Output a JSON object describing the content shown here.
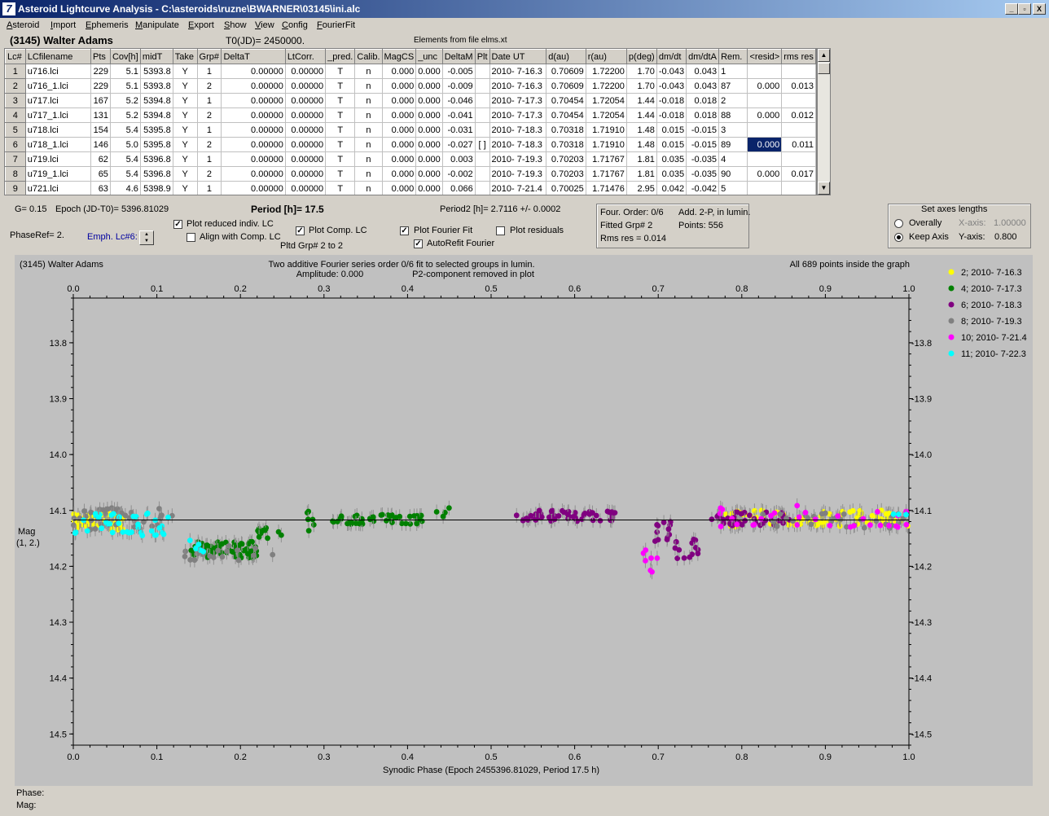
{
  "window": {
    "title": "Asteroid Lightcurve Analysis - C:\\asteroids\\ruzne\\BWARNER\\03145\\ini.alc",
    "icon": "7",
    "min": "_",
    "max": "▫",
    "close": "X"
  },
  "menu": [
    "Asteroid",
    "Import",
    "Ephemeris",
    "Manipulate",
    "Export",
    "Show",
    "View",
    "Config",
    "FourierFit"
  ],
  "header": {
    "object": "(3145) Walter Adams",
    "t0": "T0(JD)= 2450000.",
    "elements": "Elements from file elms.xt"
  },
  "table": {
    "columns": [
      "Lc#",
      "LCfilename",
      "Pts",
      "Cov[h]",
      "midT",
      "Take",
      "Grp#",
      "DeltaT",
      "LtCorr.",
      "_pred.",
      "Calib.",
      "MagCS",
      "_unc",
      "DeltaM",
      "Plt",
      "Date UT",
      "d(au)",
      "r(au)",
      "p(deg)",
      "dm/dt",
      "dm/dtA",
      "Rem.",
      "<resid>",
      "rms res"
    ],
    "rows": [
      [
        "1",
        "u716.lci",
        "229",
        "5.1",
        "5393.8",
        "Y",
        "1",
        "0.00000",
        "0.00000",
        "T",
        "n",
        "0.000",
        "0.000",
        "-0.005",
        "",
        "2010- 7-16.3",
        "0.70609",
        "1.72200",
        "1.70",
        "-0.043",
        "0.043",
        "1",
        "",
        ""
      ],
      [
        "2",
        "u716_1.lci",
        "229",
        "5.1",
        "5393.8",
        "Y",
        "2",
        "0.00000",
        "0.00000",
        "T",
        "n",
        "0.000",
        "0.000",
        "-0.009",
        "",
        "2010- 7-16.3",
        "0.70609",
        "1.72200",
        "1.70",
        "-0.043",
        "0.043",
        "87",
        "0.000",
        "0.013"
      ],
      [
        "3",
        "u717.lci",
        "167",
        "5.2",
        "5394.8",
        "Y",
        "1",
        "0.00000",
        "0.00000",
        "T",
        "n",
        "0.000",
        "0.000",
        "-0.046",
        "",
        "2010- 7-17.3",
        "0.70454",
        "1.72054",
        "1.44",
        "-0.018",
        "0.018",
        "2",
        "",
        ""
      ],
      [
        "4",
        "u717_1.lci",
        "131",
        "5.2",
        "5394.8",
        "Y",
        "2",
        "0.00000",
        "0.00000",
        "T",
        "n",
        "0.000",
        "0.000",
        "-0.041",
        "",
        "2010- 7-17.3",
        "0.70454",
        "1.72054",
        "1.44",
        "-0.018",
        "0.018",
        "88",
        "0.000",
        "0.012"
      ],
      [
        "5",
        "u718.lci",
        "154",
        "5.4",
        "5395.8",
        "Y",
        "1",
        "0.00000",
        "0.00000",
        "T",
        "n",
        "0.000",
        "0.000",
        "-0.031",
        "",
        "2010- 7-18.3",
        "0.70318",
        "1.71910",
        "1.48",
        "0.015",
        "-0.015",
        "3",
        "",
        ""
      ],
      [
        "6",
        "u718_1.lci",
        "146",
        "5.0",
        "5395.8",
        "Y",
        "2",
        "0.00000",
        "0.00000",
        "T",
        "n",
        "0.000",
        "0.000",
        "-0.027",
        "[ ]",
        "2010- 7-18.3",
        "0.70318",
        "1.71910",
        "1.48",
        "0.015",
        "-0.015",
        "89",
        "0.000",
        "0.011"
      ],
      [
        "7",
        "u719.lci",
        "62",
        "5.4",
        "5396.8",
        "Y",
        "1",
        "0.00000",
        "0.00000",
        "T",
        "n",
        "0.000",
        "0.000",
        "0.003",
        "",
        "2010- 7-19.3",
        "0.70203",
        "1.71767",
        "1.81",
        "0.035",
        "-0.035",
        "4",
        "",
        ""
      ],
      [
        "8",
        "u719_1.lci",
        "65",
        "5.4",
        "5396.8",
        "Y",
        "2",
        "0.00000",
        "0.00000",
        "T",
        "n",
        "0.000",
        "0.000",
        "-0.002",
        "",
        "2010- 7-19.3",
        "0.70203",
        "1.71767",
        "1.81",
        "0.035",
        "-0.035",
        "90",
        "0.000",
        "0.017"
      ],
      [
        "9",
        "u721.lci",
        "63",
        "4.6",
        "5398.9",
        "Y",
        "1",
        "0.00000",
        "0.00000",
        "T",
        "n",
        "0.000",
        "0.000",
        "0.066",
        "",
        "2010- 7-21.4",
        "0.70025",
        "1.71476",
        "2.95",
        "0.042",
        "-0.042",
        "5",
        "",
        ""
      ]
    ],
    "selected_cell": "0.000"
  },
  "controls": {
    "g": "G= 0.15",
    "epoch": "Epoch (JD-T0)= 5396.81029",
    "period": "Period [h]= 17.5",
    "period2": "Period2 [h]= 2.7116 +/- 0.0002",
    "phaseref": "PhaseRef= 2.",
    "emph": "Emph. Lc#6:",
    "plot_reduced": "Plot reduced indiv. LC",
    "align_comp": "Align with Comp. LC",
    "plot_comp": "Plot Comp. LC",
    "pltd_grp": "Pltd Grp#  2  to  2",
    "plot_fourier": "Plot Fourier Fit",
    "autorefit": "AutoRefit Fourier",
    "plot_resid": "Plot residuals",
    "four_order": "Four. Order:  0/6",
    "add2p": "Add. 2-P, in lumin.",
    "fitted_grp": "Fitted Grp# 2",
    "points": "Points: 556",
    "rms": "Rms res     = 0.014",
    "axes_title": "Set axes lengths",
    "overally": "Overally",
    "keep_axis": "Keep Axis",
    "xaxis_lbl": "X-axis:",
    "xaxis_val": "1.00000",
    "yaxis_lbl": "Y-axis:",
    "yaxis_val": "0.800"
  },
  "chart_data": {
    "type": "scatter",
    "title": "Two additive Fourier series order 0/6 fit to selected groups in lumin.",
    "subtitle": "Amplitude: 0.000",
    "note": "P2-component removed in plot",
    "object": "(3145) Walter Adams",
    "points_note": "All 689 points inside the graph",
    "xlabel": "Synodic Phase (Epoch 2455396.81029, Period 17.5 h)",
    "ylabel": "Mag",
    "ylabel2": "(1, 2.)",
    "xlim": [
      0.0,
      1.0
    ],
    "ylim": [
      13.72,
      14.52
    ],
    "y_inverted": true,
    "xticks": [
      "0.0",
      "0.1",
      "0.2",
      "0.3",
      "0.4",
      "0.5",
      "0.6",
      "0.7",
      "0.8",
      "0.9",
      "1.0"
    ],
    "yticks": [
      "13.8",
      "13.9",
      "14.0",
      "14.1",
      "14.2",
      "14.3",
      "14.4",
      "14.5"
    ],
    "fit_line": 14.117,
    "grid": false,
    "legend_position": "right",
    "series": [
      {
        "name": "2; 2010- 7-16.3",
        "color": "#ffff00",
        "segments": [
          {
            "x": [
              0.0,
              0.06
            ],
            "y": 14.12,
            "spread": 0.015,
            "n": 60
          },
          {
            "x": [
              0.78,
              1.0
            ],
            "y": 14.115,
            "spread": 0.015,
            "n": 90
          }
        ]
      },
      {
        "name": "4; 2010- 7-17.3",
        "color": "#008000",
        "segments": [
          {
            "x": [
              0.14,
              0.22
            ],
            "y": 14.17,
            "spread": 0.015,
            "n": 70
          },
          {
            "x": [
              0.22,
              0.25
            ],
            "y": 14.14,
            "spread": 0.015,
            "n": 12
          },
          {
            "x": [
              0.28,
              0.3
            ],
            "y": 14.12,
            "spread": 0.02,
            "n": 6
          },
          {
            "x": [
              0.31,
              0.42
            ],
            "y": 14.115,
            "spread": 0.01,
            "n": 50
          },
          {
            "x": [
              0.43,
              0.45
            ],
            "y": 14.1,
            "spread": 0.015,
            "n": 4
          }
        ]
      },
      {
        "name": "6; 2010- 7-18.3",
        "color": "#800080",
        "segments": [
          {
            "x": [
              0.53,
              0.65
            ],
            "y": 14.11,
            "spread": 0.01,
            "n": 55
          },
          {
            "x": [
              0.69,
              0.72
            ],
            "y": 14.14,
            "spread": 0.02,
            "n": 12
          },
          {
            "x": [
              0.72,
              0.75
            ],
            "y": 14.17,
            "spread": 0.02,
            "n": 14
          },
          {
            "x": [
              0.75,
              0.86
            ],
            "y": 14.115,
            "spread": 0.012,
            "n": 40
          }
        ]
      },
      {
        "name": "8; 2010- 7-19.3",
        "color": "#808080",
        "segments": [
          {
            "x": [
              0.0,
              0.12
            ],
            "y": 14.115,
            "spread": 0.02,
            "n": 40
          },
          {
            "x": [
              0.13,
              0.24
            ],
            "y": 14.175,
            "spread": 0.015,
            "n": 20
          },
          {
            "x": [
              0.8,
              1.0
            ],
            "y": 14.12,
            "spread": 0.015,
            "n": 30
          }
        ]
      },
      {
        "name": "10; 2010- 7-21.4",
        "color": "#ff00ff",
        "segments": [
          {
            "x": [
              0.67,
              0.7
            ],
            "y": 14.19,
            "spread": 0.02,
            "n": 7
          },
          {
            "x": [
              0.77,
              1.0
            ],
            "y": 14.11,
            "spread": 0.02,
            "n": 30
          }
        ]
      },
      {
        "name": "11; 2010- 7-22.3",
        "color": "#00ffff",
        "segments": [
          {
            "x": [
              0.0,
              0.12
            ],
            "y": 14.125,
            "spread": 0.02,
            "n": 40
          },
          {
            "x": [
              0.13,
              0.16
            ],
            "y": 14.16,
            "spread": 0.02,
            "n": 6
          },
          {
            "x": [
              0.98,
              1.0
            ],
            "y": 14.1,
            "spread": 0.01,
            "n": 3
          }
        ]
      }
    ]
  },
  "status": {
    "phase": "Phase:",
    "mag": "Mag:"
  }
}
